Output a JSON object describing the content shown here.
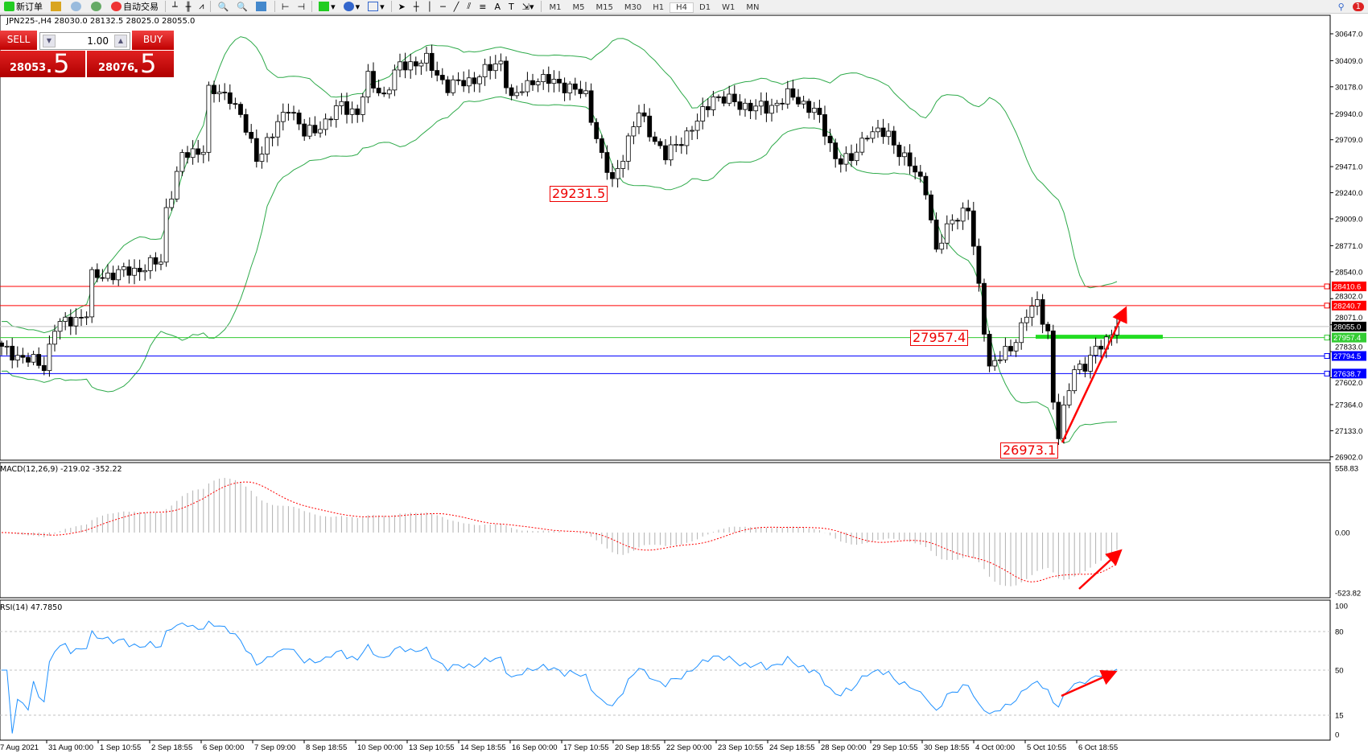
{
  "toolbar": {
    "new_order": "新订单",
    "auto_trading": "自动交易",
    "timeframes": [
      "M1",
      "M5",
      "M15",
      "M30",
      "H1",
      "H4",
      "D1",
      "W1",
      "MN"
    ],
    "active_timeframe": "H4",
    "notification_count": "1"
  },
  "chart": {
    "title": "JPN225-,H4  28030.0 28132.5 28025.0 28055.0"
  },
  "quick_trade": {
    "sell_label": "SELL",
    "buy_label": "BUY",
    "lot": "1.00",
    "sell_price_main": "28053",
    "sell_price_big": ".5",
    "buy_price_main": "28076",
    "buy_price_big": ".5"
  },
  "price_axis": [
    "30647.0",
    "30409.0",
    "30178.0",
    "29940.0",
    "29709.0",
    "29471.0",
    "29240.0",
    "29009.0",
    "28771.0",
    "28540.0",
    "28302.0",
    "28071.0",
    "27833.0",
    "27602.0",
    "27364.0",
    "27133.0",
    "26902.0"
  ],
  "levels": [
    {
      "price": "28410.6",
      "color": "#ff0000"
    },
    {
      "price": "28240.7",
      "color": "#ff0000"
    },
    {
      "price": "28055.0",
      "color": "#000000",
      "line": "#c0c0c0"
    },
    {
      "price": "27957.4",
      "color": "#33cc33"
    },
    {
      "price": "27794.5",
      "color": "#0000ff"
    },
    {
      "price": "27638.7",
      "color": "#0000ff"
    }
  ],
  "annotations": {
    "high_label": "29231.5",
    "mid_label": "27957.4",
    "low_label": "26973.1"
  },
  "macd": {
    "label": "MACD(12,26,9) -219.02 -352.22",
    "axis": [
      "558.83",
      "0.00",
      "-523.82"
    ],
    "max": 558.83,
    "min": -523.82
  },
  "rsi": {
    "label": "RSI(14) 47.7850",
    "axis": [
      "100",
      "80",
      "50",
      "15",
      "0"
    ],
    "levels": [
      80,
      50,
      15
    ]
  },
  "time_axis": [
    "7 Aug 2021",
    "31 Aug 00:00",
    "1 Sep 10:55",
    "2 Sep 18:55",
    "6 Sep 00:00",
    "7 Sep 09:00",
    "8 Sep 18:55",
    "10 Sep 00:00",
    "13 Sep 10:55",
    "14 Sep 18:55",
    "16 Sep 00:00",
    "17 Sep 10:55",
    "20 Sep 18:55",
    "22 Sep 00:00",
    "23 Sep 10:55",
    "24 Sep 18:55",
    "28 Sep 00:00",
    "29 Sep 10:55",
    "30 Sep 18:55",
    "4 Oct 00:00",
    "5 Oct 10:55",
    "6 Oct 18:55"
  ],
  "colors": {
    "bands": "#2eaa4a",
    "macd_signal": "#ff0000",
    "macd_hist": "#b0b0b0",
    "rsi": "#1e90ff",
    "arrow": "#ff0000"
  },
  "chart_data": {
    "type": "candlestick",
    "symbol": "JPN225-",
    "timeframe": "H4",
    "ylim": [
      26902.0,
      30647.0
    ],
    "indicators": [
      "Bollinger Bands",
      "MACD(12,26,9)",
      "RSI(14)"
    ],
    "close_path": [
      [
        0,
        27855
      ],
      [
        8,
        27705
      ],
      [
        10,
        28051
      ],
      [
        16,
        28168
      ],
      [
        17,
        28490
      ],
      [
        25,
        28553
      ],
      [
        30,
        28631
      ],
      [
        31,
        29094
      ],
      [
        34,
        29557
      ],
      [
        38,
        29636
      ],
      [
        39,
        30135
      ],
      [
        43,
        30099
      ],
      [
        45,
        29906
      ],
      [
        48,
        29557
      ],
      [
        51,
        29750
      ],
      [
        54,
        30020
      ],
      [
        57,
        29750
      ],
      [
        61,
        29864
      ],
      [
        64,
        30020
      ],
      [
        67,
        29942
      ],
      [
        69,
        30248
      ],
      [
        72,
        30099
      ],
      [
        75,
        30369
      ],
      [
        80,
        30405
      ],
      [
        84,
        30177
      ],
      [
        89,
        30248
      ],
      [
        94,
        30405
      ],
      [
        96,
        30056
      ],
      [
        100,
        30248
      ],
      [
        105,
        30212
      ],
      [
        110,
        30099
      ],
      [
        113,
        29557
      ],
      [
        115,
        29322
      ],
      [
        118,
        29714
      ],
      [
        120,
        29942
      ],
      [
        125,
        29557
      ],
      [
        128,
        29714
      ],
      [
        131,
        29864
      ],
      [
        134,
        30099
      ],
      [
        139,
        30020
      ],
      [
        144,
        29981
      ],
      [
        148,
        30099
      ],
      [
        153,
        29981
      ],
      [
        157,
        29557
      ],
      [
        160,
        29518
      ],
      [
        163,
        29785
      ],
      [
        167,
        29750
      ],
      [
        171,
        29479
      ],
      [
        174,
        29287
      ],
      [
        176,
        28710
      ],
      [
        179,
        29016
      ],
      [
        182,
        29094
      ],
      [
        184,
        28396
      ],
      [
        186,
        27705
      ],
      [
        190,
        27855
      ],
      [
        193,
        28168
      ],
      [
        195,
        28247
      ],
      [
        197,
        28012
      ],
      [
        198,
        27392
      ],
      [
        199,
        27086
      ],
      [
        202,
        27705
      ],
      [
        204,
        27705
      ],
      [
        207,
        27898
      ],
      [
        210,
        28055
      ]
    ]
  }
}
